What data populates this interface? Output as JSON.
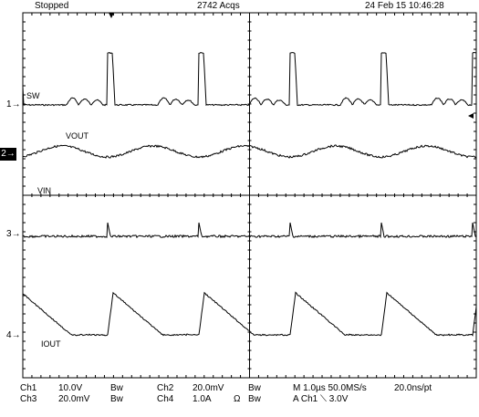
{
  "header": {
    "run_state": "Stopped",
    "acqs": "2742 Acqs",
    "datetime": "24 Feb 15 10:46:28"
  },
  "channels": {
    "sw": "SW",
    "vout": "VOUT",
    "vin": "VIN",
    "iout": "IOUT"
  },
  "markers": {
    "ch1": "1",
    "ch2": "2",
    "ch3": "3",
    "ch4": "4"
  },
  "settings": {
    "row1": {
      "ch1": "Ch1",
      "ch1_scale": "10.0V",
      "ch1_bw": "Bw",
      "ch2": "Ch2",
      "ch2_scale": "20.0mV",
      "ch2_bw": "Bw",
      "horiz": "M 1.0µs 50.0MS/s",
      "resolution": "20.0ns/pt"
    },
    "row2": {
      "ch3": "Ch3",
      "ch3_scale": "20.0mV",
      "ch3_bw": "Bw",
      "ch4": "Ch4",
      "ch4_scale": "1.0A",
      "ch4_unit": "Ω",
      "ch4_bw": "Bw",
      "trigger": "A  Ch1  ⟍  3.0V"
    }
  },
  "waveforms": {
    "trace_color": "#000000",
    "grid_color": "#000000",
    "period_divisions": 2
  }
}
